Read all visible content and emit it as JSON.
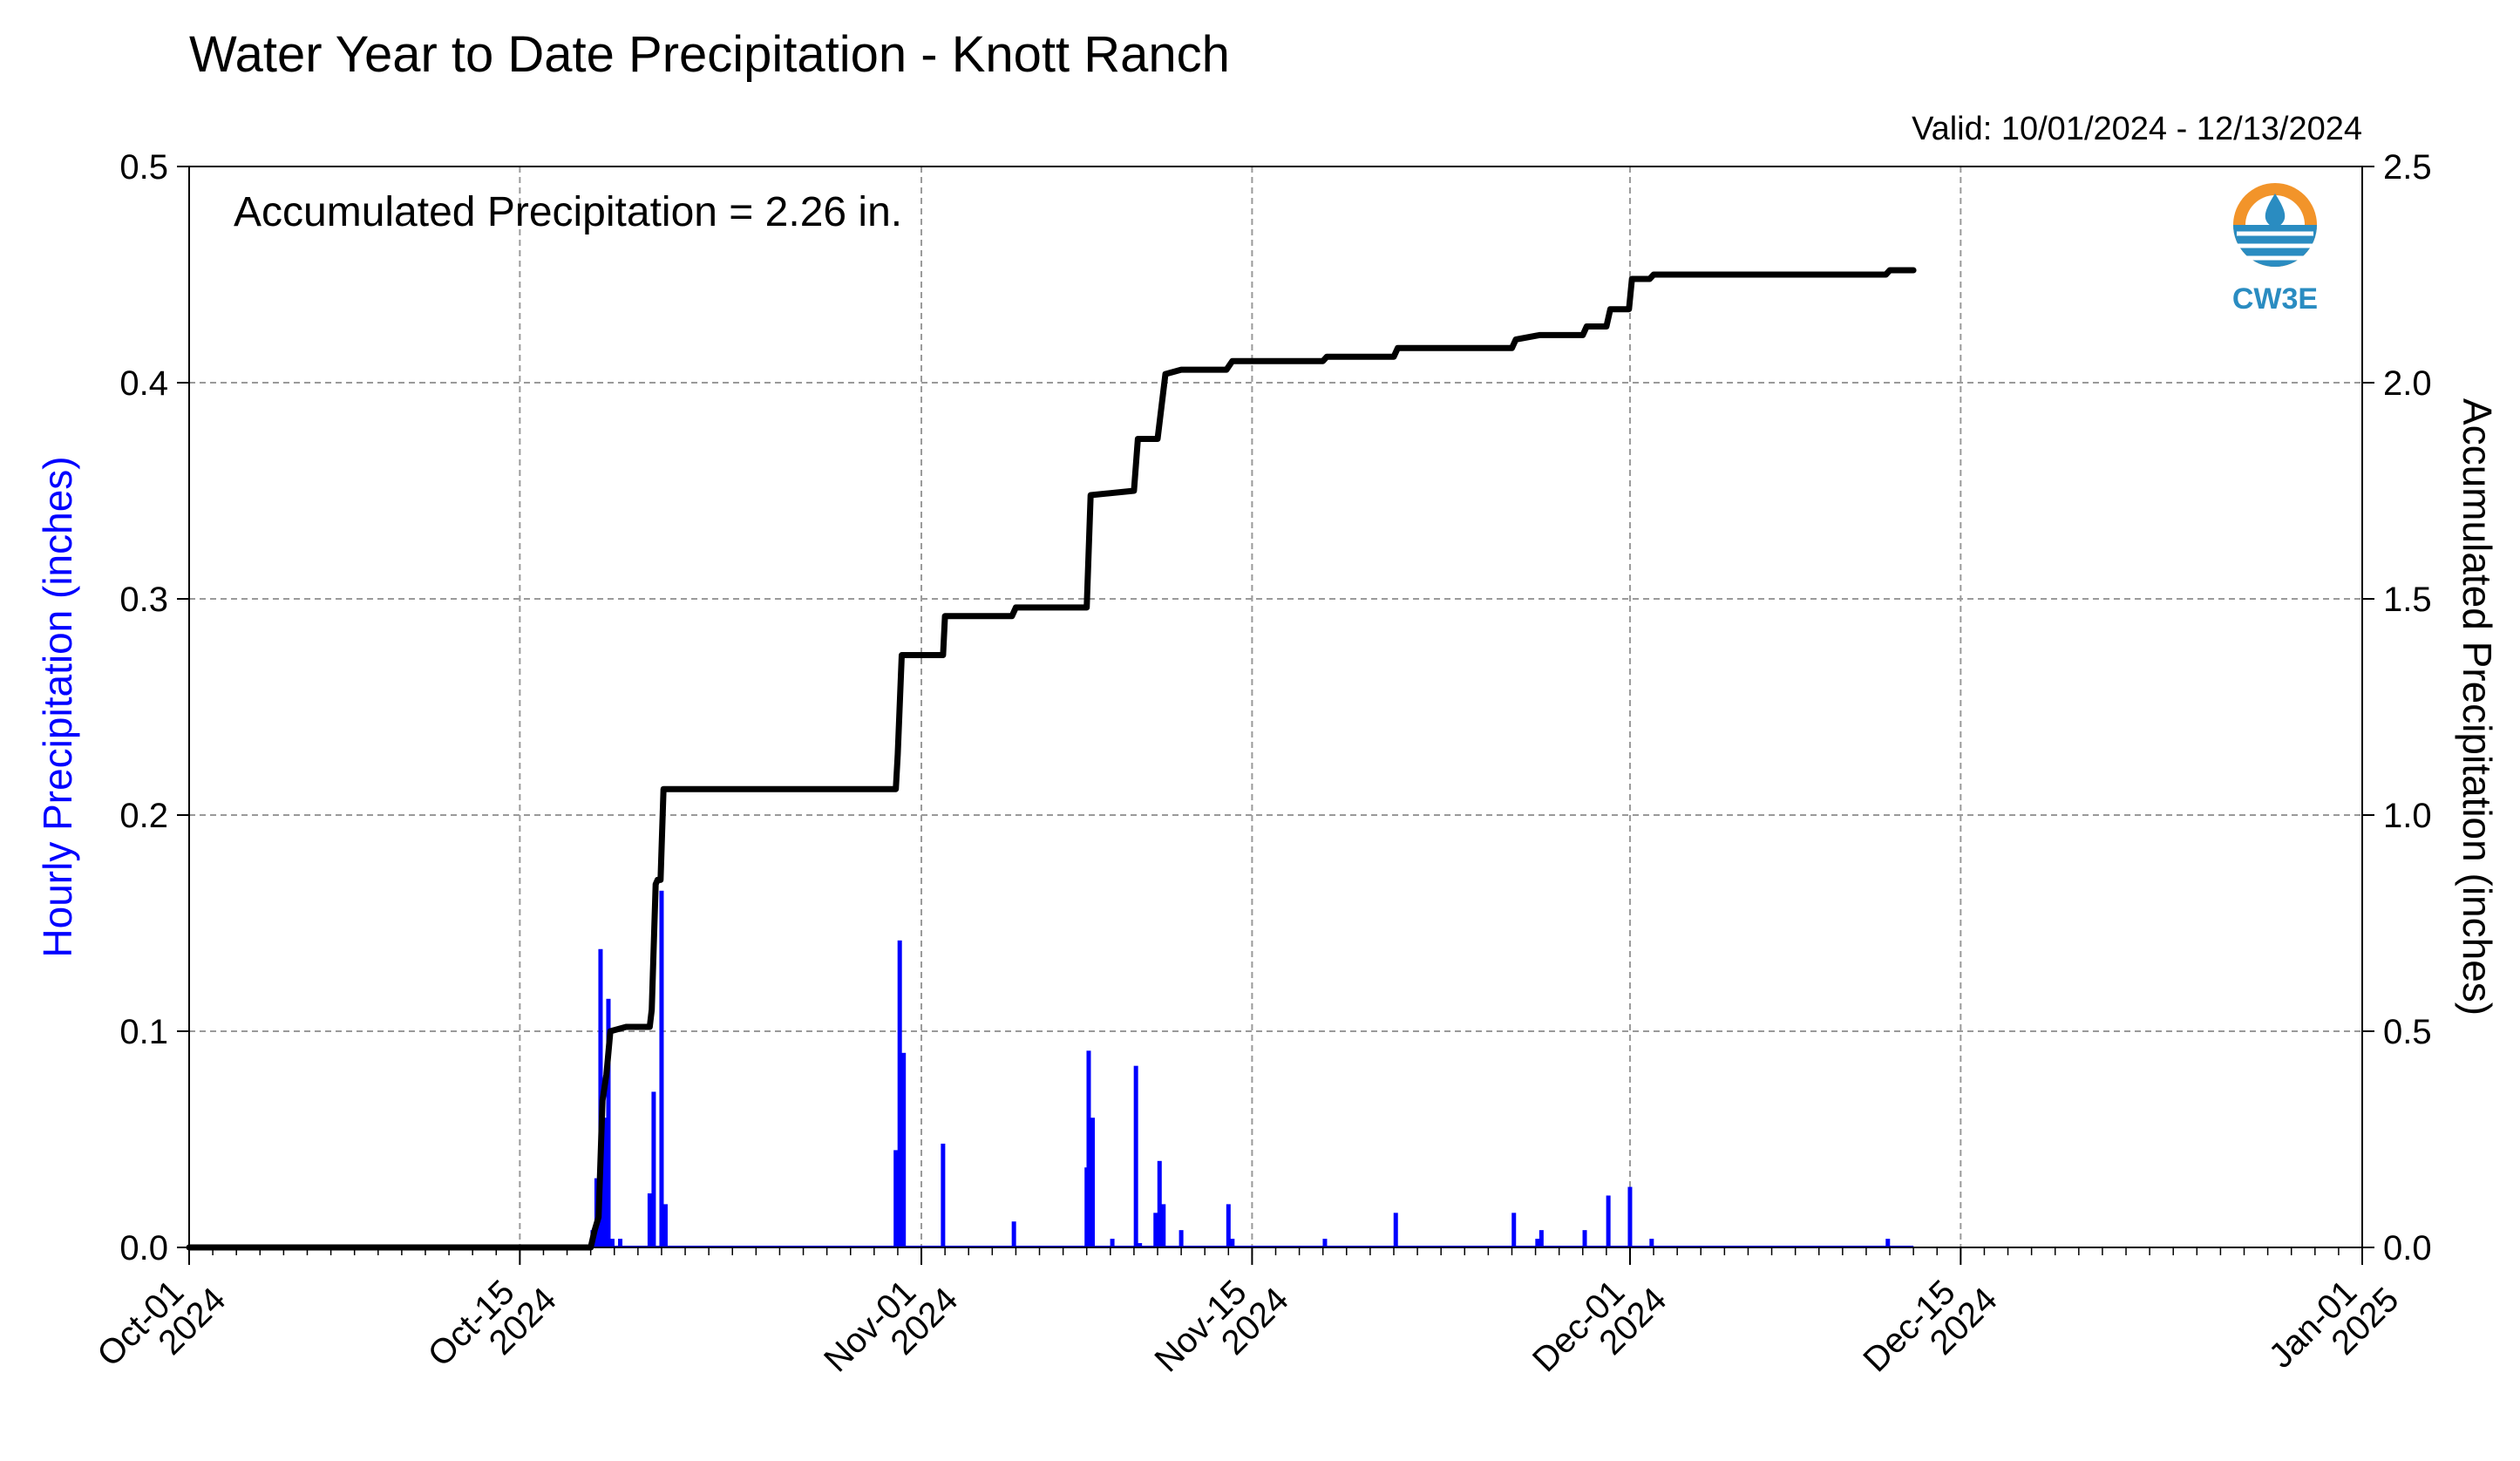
{
  "chart_data": {
    "type": "bar",
    "title": "Water Year to Date Precipitation - Knott Ranch",
    "subtitle": "Valid: 10/01/2024 - 12/13/2024",
    "annotation": "Accumulated Precipitation = 2.26 in.",
    "logo_text": "CW3E",
    "ylabel": "Hourly Precipitation (inches)",
    "ylabel_color": "#0000ff",
    "y2label": "Accumulated Precipitation (inches)",
    "ylim": [
      0,
      0.5
    ],
    "y2lim": [
      0,
      2.5
    ],
    "xlim": [
      "2024-10-01",
      "2025-01-01"
    ],
    "grid": true,
    "yticks": [
      "0.0",
      "0.1",
      "0.2",
      "0.3",
      "0.4",
      "0.5"
    ],
    "y2ticks": [
      "0.0",
      "0.5",
      "1.0",
      "1.5",
      "2.0",
      "2.5"
    ],
    "xticks": [
      {
        "date": "2024-10-01",
        "label1": "Oct-01",
        "label2": "2024"
      },
      {
        "date": "2024-10-15",
        "label1": "Oct-15",
        "label2": "2024"
      },
      {
        "date": "2024-11-01",
        "label1": "Nov-01",
        "label2": "2024"
      },
      {
        "date": "2024-11-15",
        "label1": "Nov-15",
        "label2": "2024"
      },
      {
        "date": "2024-12-01",
        "label1": "Dec-01",
        "label2": "2024"
      },
      {
        "date": "2024-12-15",
        "label1": "Dec-15",
        "label2": "2024"
      },
      {
        "date": "2025-01-01",
        "label1": "Jan-01",
        "label2": "2025"
      }
    ],
    "series": [
      {
        "type": "bar",
        "color": "#0000ff",
        "points": [
          [
            "2024-10-18T02:00",
            0.008
          ],
          [
            "2024-10-18T06:00",
            0.032
          ],
          [
            "2024-10-18T10:00",
            0.138
          ],
          [
            "2024-10-18T14:00",
            0.06
          ],
          [
            "2024-10-18T18:00",
            0.115
          ],
          [
            "2024-10-18T22:00",
            0.004
          ],
          [
            "2024-10-19T06:00",
            0.004
          ],
          [
            "2024-10-20T12:00",
            0.025
          ],
          [
            "2024-10-20T16:00",
            0.072
          ],
          [
            "2024-10-21T00:00",
            0.165
          ],
          [
            "2024-10-21T04:00",
            0.02
          ],
          [
            "2024-10-30T22:00",
            0.045
          ],
          [
            "2024-10-31T02:00",
            0.142
          ],
          [
            "2024-10-31T06:00",
            0.09
          ],
          [
            "2024-11-01T22:00",
            0.048
          ],
          [
            "2024-11-04T22:00",
            0.012
          ],
          [
            "2024-11-08T00:00",
            0.037
          ],
          [
            "2024-11-08T02:00",
            0.091
          ],
          [
            "2024-11-08T06:00",
            0.06
          ],
          [
            "2024-11-09T02:00",
            0.004
          ],
          [
            "2024-11-10T02:00",
            0.084
          ],
          [
            "2024-11-10T06:00",
            0.002
          ],
          [
            "2024-11-10T22:00",
            0.016
          ],
          [
            "2024-11-11T02:00",
            0.04
          ],
          [
            "2024-11-11T06:00",
            0.02
          ],
          [
            "2024-11-12T00:00",
            0.008
          ],
          [
            "2024-11-14T00:00",
            0.02
          ],
          [
            "2024-11-14T04:00",
            0.004
          ],
          [
            "2024-11-18T02:00",
            0.004
          ],
          [
            "2024-11-21T02:00",
            0.016
          ],
          [
            "2024-11-26T02:00",
            0.016
          ],
          [
            "2024-11-27T02:00",
            0.004
          ],
          [
            "2024-11-27T06:00",
            0.008
          ],
          [
            "2024-11-29T02:00",
            0.008
          ],
          [
            "2024-11-30T02:00",
            0.024
          ],
          [
            "2024-12-01T00:00",
            0.028
          ],
          [
            "2024-12-01T22:00",
            0.004
          ],
          [
            "2024-12-11T22:00",
            0.004
          ]
        ]
      },
      {
        "type": "line",
        "axis": "right",
        "color": "#000000",
        "points": [
          [
            "2024-10-01T00:00",
            0.0
          ],
          [
            "2024-10-18T00:00",
            0.0
          ],
          [
            "2024-10-18T04:00",
            0.04
          ],
          [
            "2024-10-18T08:00",
            0.07
          ],
          [
            "2024-10-18T12:00",
            0.34
          ],
          [
            "2024-10-18T16:00",
            0.4
          ],
          [
            "2024-10-18T20:00",
            0.5
          ],
          [
            "2024-10-19T12:00",
            0.51
          ],
          [
            "2024-10-20T12:00",
            0.51
          ],
          [
            "2024-10-20T14:00",
            0.55
          ],
          [
            "2024-10-20T18:00",
            0.84
          ],
          [
            "2024-10-20T20:00",
            0.85
          ],
          [
            "2024-10-20T23:00",
            0.85
          ],
          [
            "2024-10-21T02:00",
            1.06
          ],
          [
            "2024-10-30T22:00",
            1.06
          ],
          [
            "2024-10-31T00:00",
            1.14
          ],
          [
            "2024-10-31T04:00",
            1.37
          ],
          [
            "2024-11-01T22:00",
            1.37
          ],
          [
            "2024-11-02T00:00",
            1.46
          ],
          [
            "2024-11-04T20:00",
            1.46
          ],
          [
            "2024-11-05T00:00",
            1.48
          ],
          [
            "2024-11-08T00:00",
            1.48
          ],
          [
            "2024-11-08T04:00",
            1.74
          ],
          [
            "2024-11-10T00:00",
            1.75
          ],
          [
            "2024-11-10T04:00",
            1.87
          ],
          [
            "2024-11-11T00:00",
            1.87
          ],
          [
            "2024-11-11T08:00",
            2.02
          ],
          [
            "2024-11-12T00:00",
            2.03
          ],
          [
            "2024-11-13T22:00",
            2.03
          ],
          [
            "2024-11-14T04:00",
            2.05
          ],
          [
            "2024-11-18T00:00",
            2.05
          ],
          [
            "2024-11-18T04:00",
            2.06
          ],
          [
            "2024-11-21T00:00",
            2.06
          ],
          [
            "2024-11-21T04:00",
            2.08
          ],
          [
            "2024-11-26T00:00",
            2.08
          ],
          [
            "2024-11-26T04:00",
            2.1
          ],
          [
            "2024-11-27T04:00",
            2.11
          ],
          [
            "2024-11-29T00:00",
            2.11
          ],
          [
            "2024-11-29T04:00",
            2.13
          ],
          [
            "2024-11-30T00:00",
            2.13
          ],
          [
            "2024-11-30T04:00",
            2.17
          ],
          [
            "2024-11-30T23:00",
            2.17
          ],
          [
            "2024-12-01T02:00",
            2.24
          ],
          [
            "2024-12-01T20:00",
            2.24
          ],
          [
            "2024-12-02T00:00",
            2.25
          ],
          [
            "2024-12-11T20:00",
            2.25
          ],
          [
            "2024-12-12T00:00",
            2.26
          ],
          [
            "2024-12-13T00:00",
            2.26
          ]
        ]
      }
    ]
  }
}
